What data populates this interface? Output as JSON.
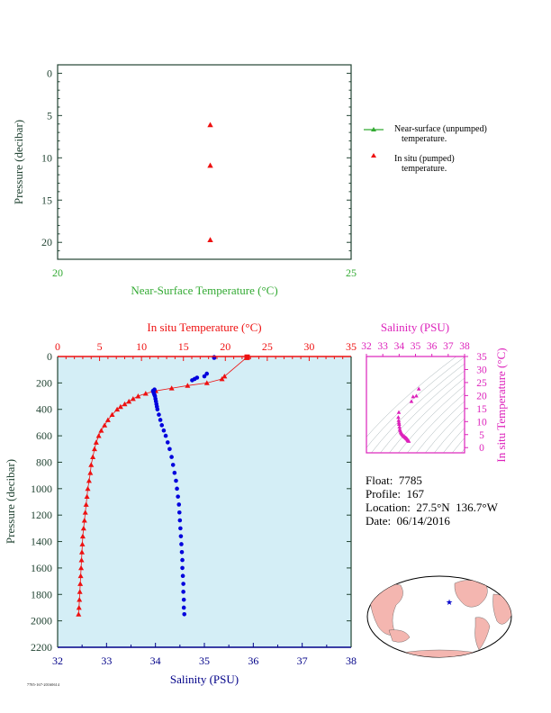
{
  "colors": {
    "green": "#33aa33",
    "red": "#ee1111",
    "blue": "#0000dd",
    "navy": "#000088",
    "magenta": "#dd22bb",
    "axis_dark": "#224433",
    "plot_bg": "#d4eef6"
  },
  "top_panel": {
    "ylabel": "Pressure (decibar)",
    "xlabel": "Near-Surface Temperature (°C)"
  },
  "legend": {
    "items": [
      {
        "line1": "Near-surface (unpumped)",
        "line2": "temperature.",
        "color": "#33aa33",
        "marker": "line-triangle"
      },
      {
        "line1": "In situ (pumped)",
        "line2": "temperature.",
        "color": "#ee1111",
        "marker": "triangle"
      }
    ]
  },
  "main_panel": {
    "ylabel": "Pressure (decibar)",
    "xlabel_bottom": "Salinity (PSU)",
    "xlabel_top": "In situ Temperature (°C)"
  },
  "ts_panel": {
    "xlabel": "Salinity (PSU)",
    "ylabel": "In situ Temperature (°C)"
  },
  "float_info": {
    "float": "Float:  7785",
    "profile": "Profile:  167",
    "location": "Location:  27.5°N  136.7°W",
    "date": "Date:  06/14/2016"
  },
  "footer_text": "7785-167-20160614",
  "map": {
    "marker": "star"
  },
  "chart_data": [
    {
      "type": "scatter",
      "title": "",
      "xlabel": "Near-Surface Temperature (°C)",
      "ylabel": "Pressure (decibar)",
      "xlim": [
        20,
        25
      ],
      "ylim": [
        22,
        -1
      ],
      "xticks": [
        20,
        25
      ],
      "yticks": [
        0,
        5,
        10,
        15,
        20
      ],
      "series": [
        {
          "name": "In situ (pumped) temperature.",
          "x": [
            22.6,
            22.6,
            22.6
          ],
          "y": [
            6.1,
            10.9,
            19.7
          ]
        },
        {
          "name": "Near-surface (unpumped) temperature.",
          "x": [],
          "y": []
        }
      ]
    },
    {
      "type": "line",
      "title": "",
      "xlabel_bottom": "Salinity (PSU)",
      "xlabel_top": "In situ Temperature (°C)",
      "ylabel": "Pressure (decibar)",
      "xlim_salinity": [
        32,
        38
      ],
      "xlim_temperature": [
        0,
        35
      ],
      "ylim": [
        2200,
        0
      ],
      "xticks_salinity": [
        32,
        33,
        34,
        35,
        36,
        37,
        38
      ],
      "xticks_temperature": [
        0,
        5,
        10,
        15,
        20,
        25,
        30,
        35
      ],
      "yticks": [
        0,
        200,
        400,
        600,
        800,
        1000,
        1200,
        1400,
        1600,
        1800,
        2000,
        2200
      ],
      "series": [
        {
          "name": "In situ Temperature",
          "pressure": [
            5,
            10,
            150,
            170,
            200,
            220,
            240,
            260,
            280,
            300,
            320,
            340,
            360,
            380,
            400,
            440,
            480,
            520,
            560,
            600,
            650,
            700,
            760,
            820,
            880,
            940,
            1000,
            1060,
            1120,
            1180,
            1240,
            1300,
            1360,
            1420,
            1480,
            1540,
            1600,
            1660,
            1720,
            1780,
            1840,
            1900,
            1950
          ],
          "values": [
            22.6,
            22.5,
            19.9,
            19.6,
            17.8,
            15.5,
            13.6,
            11.7,
            10.5,
            9.6,
            9.0,
            8.5,
            8.0,
            7.5,
            7.1,
            6.5,
            6.0,
            5.6,
            5.2,
            4.9,
            4.6,
            4.4,
            4.2,
            4.0,
            3.9,
            3.75,
            3.6,
            3.5,
            3.4,
            3.3,
            3.2,
            3.1,
            3.0,
            2.95,
            2.9,
            2.85,
            2.8,
            2.75,
            2.7,
            2.65,
            2.6,
            2.55,
            2.5
          ]
        },
        {
          "name": "Salinity",
          "pressure": [
            5,
            10,
            130,
            150,
            160,
            170,
            180,
            250,
            260,
            270,
            280,
            290,
            300,
            320,
            340,
            360,
            380,
            400,
            440,
            480,
            520,
            560,
            600,
            650,
            700,
            760,
            820,
            880,
            940,
            1000,
            1060,
            1120,
            1180,
            1240,
            1300,
            1360,
            1420,
            1480,
            1540,
            1600,
            1660,
            1720,
            1780,
            1840,
            1900,
            1950
          ],
          "values": [
            35.2,
            35.2,
            35.05,
            35.0,
            34.85,
            34.8,
            34.75,
            33.98,
            33.95,
            33.96,
            33.97,
            33.98,
            33.99,
            34.0,
            34.01,
            34.02,
            34.03,
            34.04,
            34.07,
            34.1,
            34.13,
            34.17,
            34.21,
            34.25,
            34.29,
            34.33,
            34.36,
            34.39,
            34.42,
            34.44,
            34.46,
            34.48,
            34.49,
            34.5,
            34.51,
            34.52,
            34.53,
            34.54,
            34.55,
            34.55,
            34.56,
            34.57,
            34.57,
            34.58,
            34.58,
            34.59
          ]
        }
      ]
    },
    {
      "type": "scatter",
      "title": "",
      "xlabel": "Salinity (PSU)",
      "ylabel": "In situ Temperature (°C)",
      "xlim": [
        32,
        38
      ],
      "ylim": [
        -2,
        35
      ],
      "xticks": [
        32,
        33,
        34,
        35,
        36,
        37,
        38
      ],
      "yticks": [
        0,
        5,
        10,
        15,
        20,
        25,
        30,
        35
      ],
      "series": [
        {
          "name": "T-S",
          "x": [
            35.2,
            35.05,
            34.85,
            34.75,
            33.98,
            33.95,
            33.97,
            33.99,
            34.0,
            34.02,
            34.04,
            34.07,
            34.1,
            34.13,
            34.17,
            34.21,
            34.25,
            34.29,
            34.33,
            34.36,
            34.39,
            34.42,
            34.44,
            34.46,
            34.48,
            34.5,
            34.52,
            34.54,
            34.55,
            34.57,
            34.59
          ],
          "y": [
            22.6,
            19.9,
            19.6,
            17.8,
            13.6,
            11.7,
            10.5,
            9.6,
            9.0,
            8.0,
            7.1,
            6.5,
            6.0,
            5.6,
            5.2,
            4.9,
            4.6,
            4.4,
            4.2,
            4.0,
            3.9,
            3.75,
            3.6,
            3.5,
            3.4,
            3.2,
            3.0,
            2.9,
            2.8,
            2.65,
            2.5
          ]
        }
      ]
    }
  ]
}
